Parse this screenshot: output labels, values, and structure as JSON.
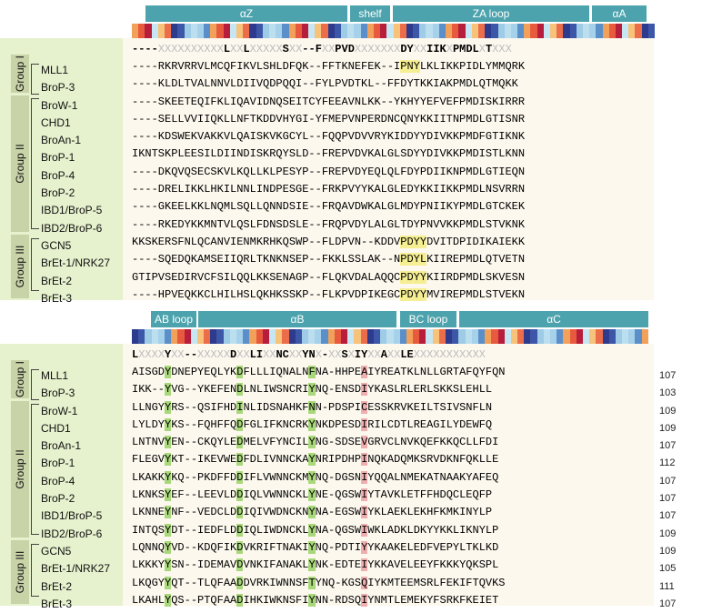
{
  "groups": [
    "Group I",
    "Group II",
    "Group III"
  ],
  "proteins": [
    "MLL1",
    "BroP-3",
    "BroW-1",
    "CHD1",
    "BroAn-1",
    "BroP-1",
    "BroP-4",
    "BroP-2",
    "IBD1/BroP-5",
    "IBD2/BroP-6",
    "GCN5",
    "BrEt-1/NRK27",
    "BrEt-2",
    "BrEt-3"
  ],
  "top": {
    "secondary_structure": [
      "αZ",
      "shelf",
      "ZA loop",
      "αA"
    ],
    "consensus": "----XXXXXXXXXXLXXLXXXXXSXX--FXXPVDXXXXXXXDYXXIIKXPMDLXTXXX",
    "sequences": [
      "----RKRVRRVLMCQFIKVLSHLDFQK--FFTKNEFEK--IPNYLKLIKKPIDLYMMQRK",
      "----KLDLTVALNNVLDIIVQDPQQI--FYLPVDTKL--FFDYTKKIAKPMDLQTMQKK",
      "----SKEETEQIFKLIQAVIDNQSEITCYFEEAVNLKK--YKHYYEFVEFPMDISKIRRR",
      "----SELLVVIIQKLLNFTKDDVHYGI-YFMEPVNPERDNCQNYKKIITNPMDLGTISNR",
      "----KDSWEKVAKKVLQAISKVKGCYL--FQQPVDVVRYKIDDYYDIVKKPMDFGTIKNK",
      "IKNTSKPLEESILDIINDISKRQYSLD--FREPVDVKALGLSDYYDIVKKPMDISTLKNN",
      "----DKQVQSECSKVLKQLLKLPESYP--FREPVDYEQLQLFDYPDIIKNPMDLGTIEQN",
      "----DRELIKKLHKILNNLINDPESGE--FRKPVYYKALGLEDYKKIIKKPMDLNSVRRN",
      "----GKEELKKLNQMLSQLLQNNDSIE--FRQAVDWKALGLMDYPNIIKYPMDLGTCKEK",
      "----RKEDYKKMNTVLQSLFDNSDSLE--FRQPVDYLALGLTDYPNVVKKPMDLSTVKNK",
      "KKSKERSFNLQCANVIENMKRHKQSWP--FLDPVN--KDDVPDYYDVITDPIDIKAIEKK",
      "----SQEDQKAMSEIIQRLTKNKNSEP--FKKLSSLAK--NPDYLKIIREPMDLQTVETN",
      "GTIPVSEDIRVCFSILQQLKKSENAGP--FLQKVDALAQQCPDYYKIIRDPMDLSKVESN",
      "----HPVEQKKCLHILHSLQKHKSSKP--FLKPVDPIKEGCPDYYMVIREPMDLSTVEKN"
    ]
  },
  "bottom": {
    "secondary_structure": [
      "AB loop",
      "αB",
      "BC loop",
      "αC"
    ],
    "consensus": "LXXXXYXX--XXXXXDXXLIXXNCXXYNX-XXSXIYXXAXXLEXXXXXXXXXXX",
    "sequences": [
      "AISGDYDNEPYEQLYKDFLLLIQNALNFNA-HHPEAIYREATKLNLLGRTAFQYFQN",
      "IKK--YVG--YKEFENDLNLIWSNCRIYNQ-ENSDIYKASLRLERLSKKSLEHLL",
      "LLNGYYRS--QSIFHDINLIDSNAHKFNN-PDSPICESSKRVKEILTSIVSNFLN",
      "LYLDYYKS--FQHFFQDFGLIFKNCRKYNKDPESDIRILCDTLREAGILYDEWFQ",
      "LNTNVYEN--CKQYLEDMELVFYNCILYNG-SDSEVGRVCLNVKQEFKKQCLLFDI",
      "FLEGVYKT--IKEVWEDFDLIVNNCKAYNRIPDHPINQKADQMKSRVDKNFQKLLE",
      "LKAKKYKQ--PKDFFDDIFLVWNNCKMYNQ-DGSNIYQQALNMEKATNAAKYAFEQ",
      "LKNKSYEF--LEEVLDDIQLVWNNCKLYNE-QGSWIYTAVKLETFFHDQCLEQFP",
      "LKNNEYNF--VEDCLDDIQIVWDNCKNYNA-EGSWIYKLAEKLEKHFKMKINYLP",
      "INTQSYDT--IEDFLDDIQLIWDNCKLYNA-QGSWIWKLADKLDKYYKKLIKNYLP",
      "LQNNQYVD--KDQFIKDVKRIFTNAKIYNQ-PDTIYYKAAKELEDFVEPYLTKLKD",
      "LKKKYYSN--IDEMAVDVNKIFANAKLYNK-EDTEIYKKAVELEEYFKKKYQKSPL",
      "LKQGYYQT--TLQFAADDVRKIWNNSFTYNQ-KGSQIYKMTEEMSRLFEKIFTQVKS",
      "LKAHLYQS--PTQFAADIHKIWKNSFIYNN-RDSQIYNMTLEMEKYFSRKFKEIET"
    ],
    "lengths": [
      "107",
      "103",
      "109",
      "109",
      "107",
      "112",
      "107",
      "107",
      "107",
      "109",
      "109",
      "105",
      "111",
      "107"
    ]
  }
}
